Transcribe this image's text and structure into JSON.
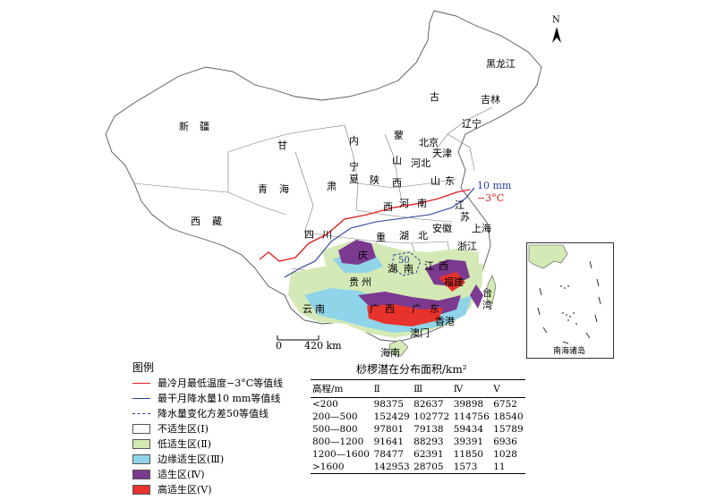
{
  "map": {
    "north_symbol": "N",
    "scale_bar": {
      "start_label": "0",
      "end_label": "420 km"
    },
    "inset_title": "南海诸岛",
    "isoline_labels": {
      "precip_label": "10 mm",
      "temp_label": "−3°C",
      "variance_label": "50"
    },
    "province_labels": [
      "黑龙江",
      "吉林",
      "辽宁",
      "古",
      "蒙",
      "内",
      "新",
      "疆",
      "甘",
      "宁",
      "夏",
      "肃",
      "青",
      "海",
      "西",
      "藏",
      "陕",
      "西",
      "山",
      "西",
      "北京",
      "天津",
      "河北",
      "山",
      "东",
      "河",
      "南",
      "江",
      "苏",
      "上海",
      "安徽",
      "浙江",
      "湖",
      "北",
      "四",
      "川",
      "重",
      "庆",
      "湖",
      "南",
      "江",
      "西",
      "福建",
      "贵",
      "州",
      "云",
      "南",
      "广",
      "西",
      "广",
      "东",
      "台",
      "湾",
      "香港",
      "澳门",
      "海南"
    ],
    "colors": {
      "unsuitable": "#ffffff",
      "low_suitable": "#d4e9b5",
      "marginal_suitable": "#8fd4e8",
      "suitable": "#7b3a8f",
      "high_suitable": "#e8322c",
      "temp_line": "#e02020",
      "precip_line": "#2a3f9c",
      "variance_line": "#2a3f9c"
    }
  },
  "legend": {
    "title": "图例",
    "items": [
      {
        "label": "最冷月最低温度−3°C等值线",
        "kind": "line",
        "color": "#e02020"
      },
      {
        "label": "最干月降水量10 mm等值线",
        "kind": "line",
        "color": "#2a3f9c"
      },
      {
        "label": "降水量变化方差50等值线",
        "kind": "dashed",
        "color": "#2a3f9c"
      },
      {
        "label": "不适生区(Ⅰ)",
        "kind": "box",
        "color": "#ffffff"
      },
      {
        "label": "低适生区(Ⅱ)",
        "kind": "box",
        "color": "#d4e9b5"
      },
      {
        "label": "边缘适生区(Ⅲ)",
        "kind": "box",
        "color": "#8fd4e8"
      },
      {
        "label": "适生区(Ⅳ)",
        "kind": "box",
        "color": "#7b3a8f"
      },
      {
        "label": "高适生区(Ⅴ)",
        "kind": "box",
        "color": "#e8322c"
      }
    ]
  },
  "table": {
    "title": "桫椤潜在分布面积/km²",
    "headers": [
      "高程/m",
      "Ⅱ",
      "Ⅲ",
      "Ⅳ",
      "Ⅴ"
    ],
    "rows": [
      [
        "<200",
        "98375",
        "82637",
        "39898",
        "6752"
      ],
      [
        "200—500",
        "152429",
        "102772",
        "114756",
        "18540"
      ],
      [
        "500—800",
        "97801",
        "79138",
        "59434",
        "15789"
      ],
      [
        "800—1200",
        "91641",
        "88293",
        "39391",
        "6936"
      ],
      [
        "1200—1600",
        "78477",
        "62391",
        "11850",
        "1028"
      ],
      [
        ">1600",
        "142953",
        "28705",
        "1573",
        "11"
      ]
    ]
  }
}
